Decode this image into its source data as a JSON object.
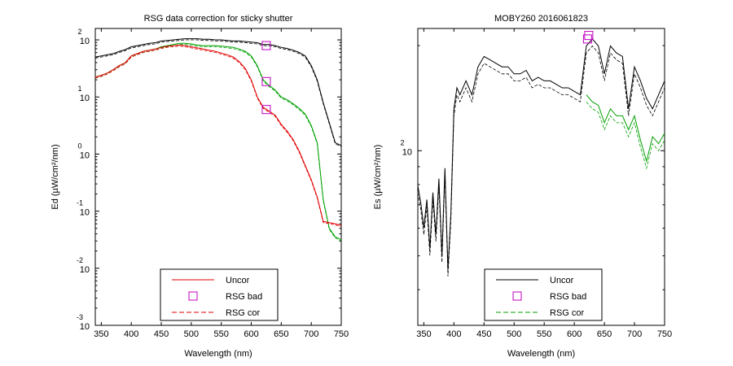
{
  "chart_data": [
    {
      "type": "line",
      "title": "RSG data correction for sticky shutter",
      "xlabel": "Wavelength (nm)",
      "ylabel": "Ed (µW/cm²/nm)",
      "y_scale": "log",
      "xlim": [
        340,
        750
      ],
      "ylim_log10": [
        -3,
        2.2
      ],
      "x_ticks": [
        350,
        400,
        450,
        500,
        550,
        600,
        650,
        700,
        750
      ],
      "y_ticks": [
        {
          "base": "10",
          "exp": "2",
          "log10": 2
        },
        {
          "base": "10",
          "exp": "1",
          "log10": 1
        },
        {
          "base": "10",
          "exp": "0",
          "log10": 0
        },
        {
          "base": "10",
          "exp": "-1",
          "log10": -1
        },
        {
          "base": "10",
          "exp": "-2",
          "log10": -2
        },
        {
          "base": "10",
          "exp": "-3",
          "log10": -3
        }
      ],
      "legend": {
        "position": "bottom-center",
        "entries": [
          {
            "label": "Uncor",
            "style": "solid",
            "color": "#e00000"
          },
          {
            "label": "RSG bad",
            "style": "square-marker",
            "color": "#c000c0"
          },
          {
            "label": "RSG cor",
            "style": "dashed",
            "color": "#e00000"
          }
        ]
      },
      "series": [
        {
          "color": "#000000",
          "x": [
            340,
            350,
            360,
            370,
            380,
            390,
            400,
            410,
            420,
            430,
            440,
            450,
            460,
            470,
            480,
            490,
            500,
            510,
            520,
            530,
            540,
            550,
            560,
            570,
            580,
            590,
            600,
            610,
            620,
            630,
            640,
            650,
            660,
            670,
            680,
            690,
            700,
            710,
            720,
            730,
            740,
            750
          ],
          "y_log10": [
            1.7,
            1.72,
            1.74,
            1.76,
            1.8,
            1.83,
            1.88,
            1.9,
            1.92,
            1.94,
            1.95,
            1.98,
            1.99,
            2.0,
            2.01,
            2.02,
            2.02,
            2.02,
            2.01,
            2.01,
            2.0,
            2.0,
            1.99,
            1.98,
            1.98,
            1.97,
            1.96,
            1.95,
            1.92,
            1.92,
            1.9,
            1.87,
            1.85,
            1.82,
            1.78,
            1.72,
            1.55,
            1.3,
            0.9,
            0.55,
            0.2,
            0.15
          ]
        },
        {
          "color": "#00a000",
          "x": [
            340,
            350,
            360,
            370,
            380,
            390,
            400,
            410,
            420,
            430,
            440,
            450,
            460,
            470,
            480,
            490,
            500,
            510,
            520,
            530,
            540,
            550,
            560,
            570,
            580,
            590,
            600,
            610,
            620,
            630,
            640,
            650,
            660,
            670,
            680,
            690,
            700,
            710,
            720,
            730,
            740,
            750
          ],
          "y_log10": [
            1.35,
            1.38,
            1.42,
            1.48,
            1.55,
            1.6,
            1.72,
            1.76,
            1.8,
            1.82,
            1.84,
            1.88,
            1.9,
            1.92,
            1.94,
            1.94,
            1.93,
            1.91,
            1.9,
            1.9,
            1.9,
            1.89,
            1.88,
            1.87,
            1.84,
            1.8,
            1.72,
            1.55,
            1.3,
            1.2,
            1.12,
            1.0,
            0.95,
            0.88,
            0.8,
            0.7,
            0.5,
            0.2,
            -0.8,
            -1.3,
            -1.45,
            -1.5
          ]
        },
        {
          "color": "#e00000",
          "x": [
            340,
            350,
            360,
            370,
            380,
            390,
            400,
            410,
            420,
            430,
            440,
            450,
            460,
            470,
            480,
            490,
            500,
            510,
            520,
            530,
            540,
            550,
            560,
            570,
            580,
            590,
            600,
            610,
            620,
            630,
            640,
            650,
            660,
            670,
            680,
            690,
            700,
            710,
            720,
            730,
            740,
            750
          ],
          "y_log10": [
            1.35,
            1.38,
            1.42,
            1.48,
            1.55,
            1.6,
            1.72,
            1.76,
            1.8,
            1.82,
            1.84,
            1.87,
            1.89,
            1.9,
            1.91,
            1.9,
            1.88,
            1.86,
            1.84,
            1.82,
            1.8,
            1.77,
            1.74,
            1.7,
            1.62,
            1.5,
            1.3,
            1.0,
            0.82,
            0.75,
            0.68,
            0.52,
            0.4,
            0.25,
            0.05,
            -0.2,
            -0.45,
            -0.75,
            -1.18,
            -1.2,
            -1.22,
            -1.25
          ]
        }
      ],
      "markers": [
        {
          "x": 625,
          "y_log10": 1.9,
          "color": "#c000c0"
        },
        {
          "x": 625,
          "y_log10": 1.27,
          "color": "#c000c0"
        },
        {
          "x": 625,
          "y_log10": 0.78,
          "color": "#c000c0"
        }
      ]
    },
    {
      "type": "line",
      "title": "MOBY260  2016061823",
      "xlabel": "Wavelength (nm)",
      "ylabel": "Es (µW/cm²/nm)",
      "y_scale": "log",
      "xlim": [
        340,
        750
      ],
      "ylim_log10": [
        1.5,
        2.35
      ],
      "x_ticks": [
        350,
        400,
        450,
        500,
        550,
        600,
        650,
        700,
        750
      ],
      "y_ticks": [
        {
          "base": "10",
          "exp": "2",
          "log10": 2
        }
      ],
      "legend": {
        "position": "bottom-center",
        "entries": [
          {
            "label": "Uncor",
            "style": "solid",
            "color": "#000000"
          },
          {
            "label": "RSG bad",
            "style": "square-marker",
            "color": "#c000c0"
          },
          {
            "label": "RSG cor",
            "style": "dashed",
            "color": "#00a000"
          }
        ]
      },
      "series": [
        {
          "color": "#000000",
          "x": [
            340,
            345,
            350,
            355,
            360,
            365,
            370,
            375,
            380,
            385,
            390,
            395,
            400,
            405,
            410,
            420,
            430,
            440,
            450,
            460,
            470,
            480,
            490,
            500,
            510,
            520,
            530,
            540,
            550,
            560,
            570,
            580,
            590,
            600,
            610,
            620,
            630,
            640,
            650,
            660,
            670,
            680,
            690,
            700,
            710,
            720,
            730,
            740,
            750
          ],
          "y_log10": [
            1.9,
            1.85,
            1.78,
            1.86,
            1.72,
            1.88,
            1.76,
            1.92,
            1.7,
            1.95,
            1.66,
            1.82,
            2.12,
            2.18,
            2.16,
            2.2,
            2.16,
            2.24,
            2.27,
            2.26,
            2.25,
            2.24,
            2.24,
            2.22,
            2.22,
            2.23,
            2.2,
            2.21,
            2.2,
            2.2,
            2.19,
            2.18,
            2.18,
            2.17,
            2.16,
            2.3,
            2.32,
            2.3,
            2.22,
            2.3,
            2.28,
            2.27,
            2.12,
            2.24,
            2.2,
            2.15,
            2.12,
            2.16,
            2.2
          ]
        },
        {
          "color": "#00a000",
          "x": [
            620,
            630,
            640,
            650,
            660,
            670,
            680,
            690,
            700,
            710,
            720,
            730,
            740,
            750
          ],
          "y_log10": [
            2.16,
            2.14,
            2.13,
            2.08,
            2.12,
            2.1,
            2.1,
            2.06,
            2.1,
            2.03,
            1.97,
            2.04,
            2.02,
            2.05
          ]
        }
      ],
      "markers": [
        {
          "x": 622,
          "y_log10": 2.32,
          "color": "#c000c0"
        },
        {
          "x": 624,
          "y_log10": 2.33,
          "color": "#c000c0"
        }
      ]
    }
  ]
}
